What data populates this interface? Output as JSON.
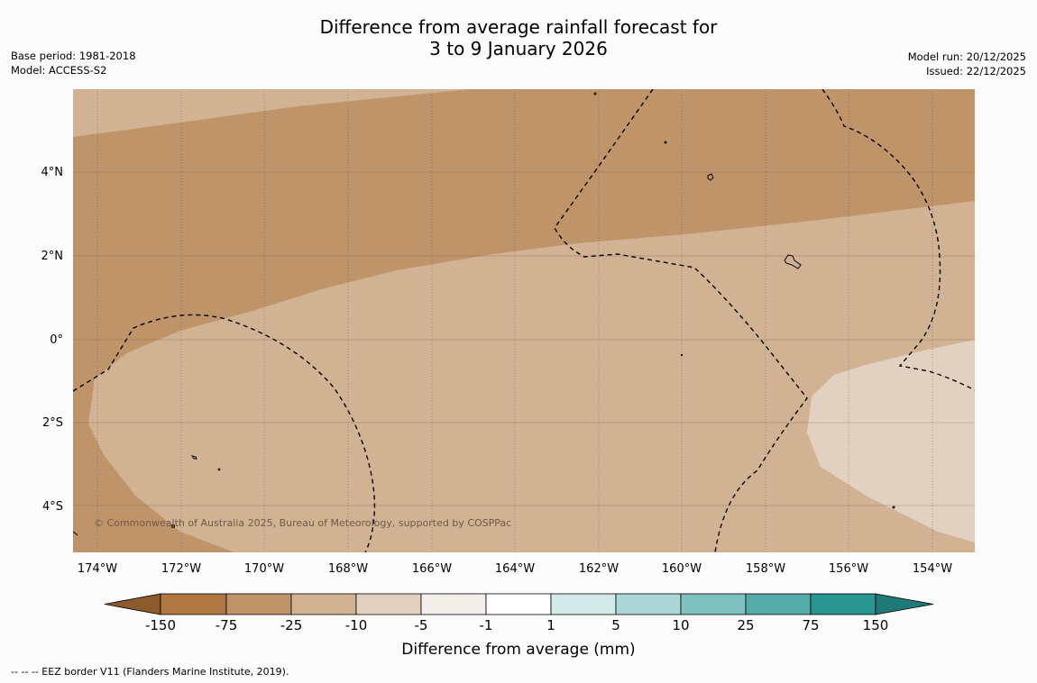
{
  "title": {
    "line1": "Difference from average rainfall forecast for",
    "line2": "3 to 9 January 2026"
  },
  "meta_left": {
    "base_period": "Base period: 1981-2018",
    "model": "Model: ACCESS-S2"
  },
  "meta_right": {
    "model_run": "Model run: 20/12/2025",
    "issued": "Issued: 22/12/2025"
  },
  "map": {
    "lat_ticks": [
      "4°N",
      "2°N",
      "0°",
      "2°S",
      "4°S"
    ],
    "lon_ticks": [
      "174°W",
      "172°W",
      "170°W",
      "168°W",
      "166°W",
      "164°W",
      "162°W",
      "160°W",
      "158°W",
      "156°W",
      "154°W"
    ],
    "copyright": "© Commonwealth of Australia 2025, Bureau of Meteorology, supported by COSPPac",
    "zone_colors": {
      "dry_moderate": "#c09469",
      "dry_light": "#d1b293",
      "near_light_dry": "#e2d1c1"
    }
  },
  "legend": {
    "bins": [
      {
        "color": "#8c5a2b"
      },
      {
        "color": "#b07841"
      },
      {
        "color": "#c09469"
      },
      {
        "color": "#d1b293"
      },
      {
        "color": "#e2d1c1"
      },
      {
        "color": "#f2efea"
      },
      {
        "color": "#ffffff"
      },
      {
        "color": "#d5ebea"
      },
      {
        "color": "#aad6d5"
      },
      {
        "color": "#7fc1be"
      },
      {
        "color": "#55aba8"
      },
      {
        "color": "#2a9692"
      },
      {
        "color": "#1f7a77"
      }
    ],
    "tick_labels": [
      "-150",
      "-75",
      "-25",
      "-10",
      "-5",
      "-1",
      "1",
      "5",
      "10",
      "25",
      "75",
      "150"
    ],
    "label": "Difference from average (mm)"
  },
  "footer": "--  --  -- EEZ border V11 (Flanders Marine Institute, 2019)."
}
